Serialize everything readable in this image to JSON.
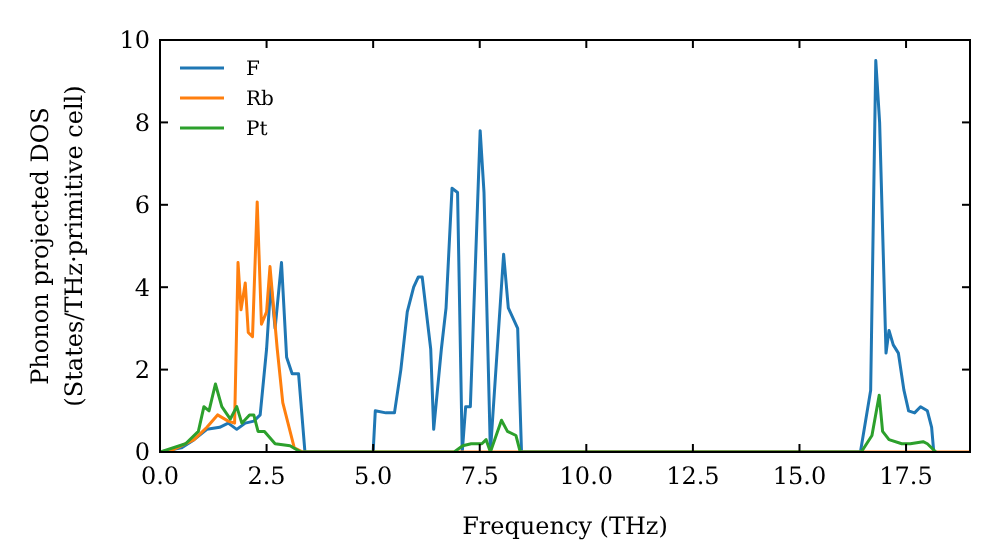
{
  "chart_data": {
    "type": "line",
    "xlabel": "Frequency (THz)",
    "ylabel": "Phonon projected DOS\n(States/THz·primitive cell)",
    "xlim": [
      0,
      19
    ],
    "ylim": [
      0,
      10
    ],
    "xticks": [
      {
        "value": 0,
        "label": "0.0"
      },
      {
        "value": 2.5,
        "label": "2.5"
      },
      {
        "value": 5,
        "label": "5.0"
      },
      {
        "value": 7.5,
        "label": "7.5"
      },
      {
        "value": 10,
        "label": "10.0"
      },
      {
        "value": 12.5,
        "label": "12.5"
      },
      {
        "value": 15,
        "label": "15.0"
      },
      {
        "value": 17.5,
        "label": "17.5"
      }
    ],
    "yticks": [
      0,
      2,
      4,
      6,
      8,
      10
    ],
    "grid": false,
    "legend": "top left",
    "line_style": "solid",
    "marker": "none",
    "series": [
      {
        "name": "F",
        "color": "#1f77b4",
        "x": [
          0,
          0.5,
          0.8,
          1.1,
          1.4,
          1.6,
          1.8,
          2.0,
          2.2,
          2.35,
          2.5,
          2.6,
          2.7,
          2.85,
          2.97,
          3.1,
          3.25,
          3.4,
          5.0,
          5.05,
          5.3,
          5.5,
          5.65,
          5.8,
          5.95,
          6.06,
          6.15,
          6.35,
          6.42,
          6.6,
          6.71,
          6.85,
          6.98,
          7.09,
          7.17,
          7.28,
          7.51,
          7.6,
          7.75,
          8.06,
          8.17,
          8.39,
          8.48,
          16.43,
          16.67,
          16.79,
          16.88,
          17.03,
          17.1,
          17.2,
          17.32,
          17.45,
          17.56,
          17.7,
          17.84,
          18.0,
          18.1,
          18.15
        ],
        "values": [
          0,
          0.1,
          0.3,
          0.55,
          0.6,
          0.7,
          0.55,
          0.7,
          0.75,
          0.9,
          2.5,
          4.1,
          3.0,
          4.6,
          2.3,
          1.9,
          1.9,
          0,
          0,
          1.0,
          0.95,
          0.95,
          2.0,
          3.4,
          4.0,
          4.25,
          4.25,
          2.5,
          0.55,
          2.5,
          3.5,
          6.4,
          6.3,
          0,
          1.1,
          1.1,
          7.8,
          6.3,
          0,
          4.8,
          3.5,
          3.0,
          0,
          0,
          1.5,
          9.5,
          8.0,
          2.4,
          2.95,
          2.6,
          2.4,
          1.5,
          1.0,
          0.95,
          1.1,
          1.0,
          0.6,
          0
        ]
      },
      {
        "name": "Rb",
        "color": "#ff7f0e",
        "x": [
          0,
          0.3,
          0.8,
          1.1,
          1.35,
          1.6,
          1.75,
          1.83,
          1.9,
          2.0,
          2.07,
          2.17,
          2.28,
          2.38,
          2.5,
          2.58,
          2.75,
          2.88,
          3.15,
          3.35,
          3.5,
          19
        ],
        "values": [
          0,
          0.05,
          0.3,
          0.6,
          0.9,
          0.75,
          0.7,
          4.6,
          3.45,
          4.1,
          2.9,
          2.8,
          6.07,
          3.1,
          3.4,
          4.5,
          2.5,
          1.2,
          0.1,
          0,
          0,
          0
        ]
      },
      {
        "name": "Pt",
        "color": "#2ca02c",
        "x": [
          0,
          0.6,
          0.9,
          1.03,
          1.15,
          1.3,
          1.45,
          1.65,
          1.8,
          1.92,
          2.1,
          2.2,
          2.3,
          2.45,
          2.7,
          3.05,
          3.3,
          6.9,
          7.1,
          7.3,
          7.55,
          7.65,
          7.75,
          8.01,
          8.15,
          8.35,
          8.45,
          16.45,
          16.7,
          16.87,
          16.95,
          17.1,
          17.4,
          17.6,
          17.9,
          18.0,
          18.2
        ],
        "values": [
          0,
          0.2,
          0.5,
          1.1,
          1.0,
          1.65,
          1.1,
          0.8,
          1.1,
          0.7,
          0.9,
          0.9,
          0.5,
          0.5,
          0.2,
          0.15,
          0,
          0,
          0.15,
          0.2,
          0.2,
          0.3,
          0,
          0.77,
          0.5,
          0.4,
          0,
          0,
          0.4,
          1.38,
          0.5,
          0.3,
          0.2,
          0.2,
          0.25,
          0.2,
          0
        ]
      }
    ]
  }
}
